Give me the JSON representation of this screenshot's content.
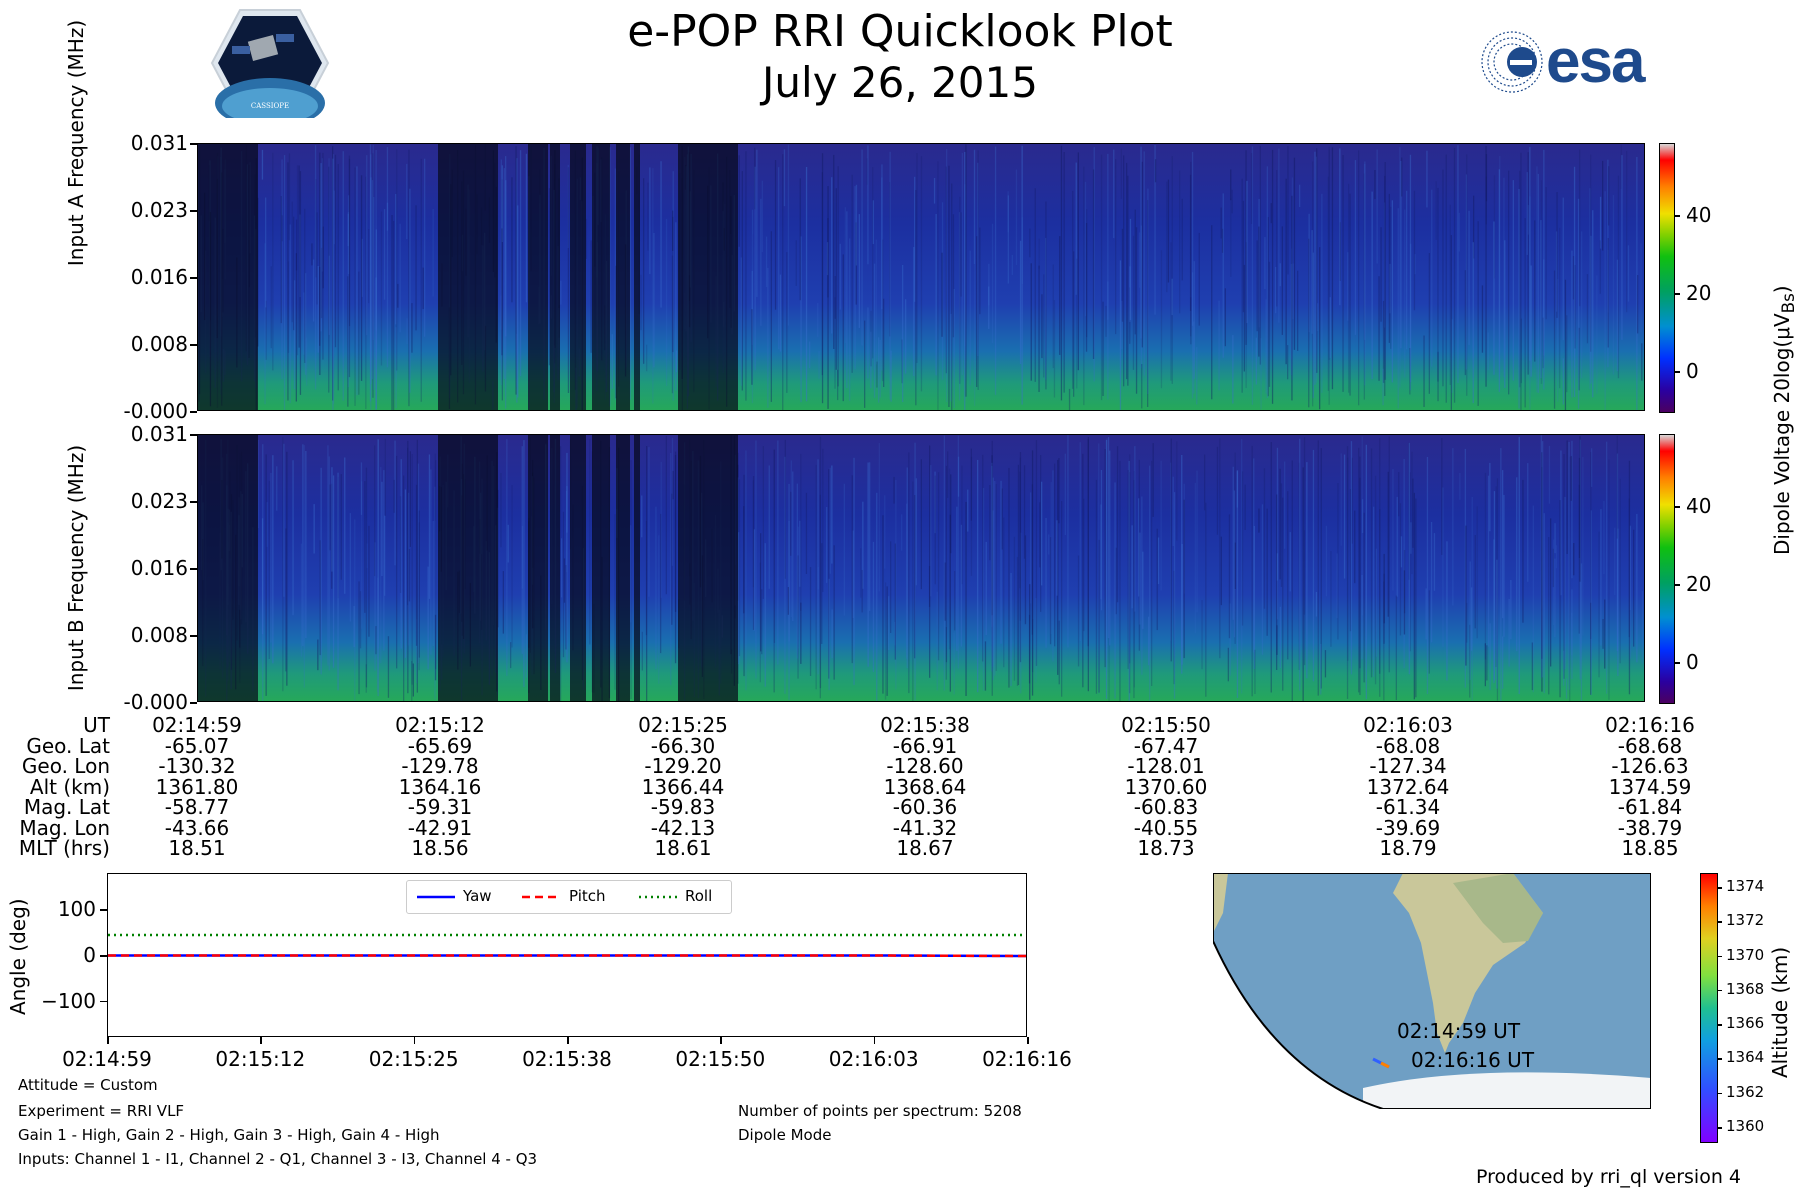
{
  "header": {
    "title": "e-POP RRI Quicklook Plot",
    "date": "July 26, 2015",
    "cassiope_logo_text": "CASSIOPE",
    "esa_logo_text": "esa"
  },
  "spectrograms": {
    "ticks": [
      "0.031",
      "0.023",
      "0.016",
      "0.008",
      "-0.000"
    ],
    "panel_a_ylabel": "Input A Frequency (MHz)",
    "panel_b_ylabel": "Input B Frequency (MHz)",
    "colorbar_ticks": [
      "40",
      "20",
      "0"
    ],
    "colorbar_label": "Dipole Voltage 20log(μV",
    "colorbar_label_sub": "Bs",
    "colorbar_label_end": ")"
  },
  "orbit_table": {
    "row_labels": [
      "UT",
      "Geo. Lat",
      "Geo. Lon",
      "Alt (km)",
      "Mag. Lat",
      "Mag. Lon",
      "MLT (hrs)"
    ],
    "columns": [
      [
        "02:14:59",
        "-65.07",
        "-130.32",
        "1361.80",
        "-58.77",
        "-43.66",
        "18.51"
      ],
      [
        "02:15:12",
        "-65.69",
        "-129.78",
        "1364.16",
        "-59.31",
        "-42.91",
        "18.56"
      ],
      [
        "02:15:25",
        "-66.30",
        "-129.20",
        "1366.44",
        "-59.83",
        "-42.13",
        "18.61"
      ],
      [
        "02:15:38",
        "-66.91",
        "-128.60",
        "1368.64",
        "-60.36",
        "-41.32",
        "18.67"
      ],
      [
        "02:15:50",
        "-67.47",
        "-128.01",
        "1370.60",
        "-60.83",
        "-40.55",
        "18.73"
      ],
      [
        "02:16:03",
        "-68.08",
        "-127.34",
        "1372.64",
        "-61.34",
        "-39.69",
        "18.79"
      ],
      [
        "02:16:16",
        "-68.68",
        "-126.63",
        "1374.59",
        "-61.84",
        "-38.79",
        "18.85"
      ]
    ]
  },
  "chart_data": {
    "type": "line",
    "ylabel": "Angle (deg)",
    "ylim": [
      -180,
      180
    ],
    "y_ticks": [
      "100",
      "0",
      "−100"
    ],
    "x_ticks": [
      "02:14:59",
      "02:15:12",
      "02:15:25",
      "02:15:38",
      "02:15:50",
      "02:16:03",
      "02:16:16"
    ],
    "legend_placement": "top-center",
    "series": [
      {
        "name": "Yaw",
        "color": "#0000ff",
        "style": "solid",
        "values": [
          1,
          1,
          1,
          1,
          1,
          1,
          0
        ]
      },
      {
        "name": "Pitch",
        "color": "#ff0000",
        "style": "dashed",
        "values": [
          1,
          1,
          1,
          1,
          1,
          1,
          0
        ]
      },
      {
        "name": "Roll",
        "color": "#008000",
        "style": "dotted",
        "values": [
          46,
          46,
          46,
          46,
          46,
          46,
          46
        ]
      }
    ]
  },
  "map": {
    "start_label": "02:14:59 UT",
    "end_label": "02:16:16 UT",
    "colorbar_ticks": [
      "1374",
      "1372",
      "1370",
      "1368",
      "1366",
      "1364",
      "1362",
      "1360"
    ],
    "colorbar_label": "Altitude (km)"
  },
  "notes": {
    "attitude": "Attitude = Custom",
    "experiment": "Experiment = RRI VLF",
    "gains": "Gain 1 - High, Gain 2 - High, Gain 3 - High, Gain 4 - High",
    "inputs": "Inputs: Channel 1 - I1, Channel 2 - Q1, Channel 3 - I3, Channel 4 - Q3",
    "points": "Number of points per spectrum: 5208",
    "mode": "Dipole Mode",
    "produced_by": "Produced by rri_ql version 4"
  }
}
